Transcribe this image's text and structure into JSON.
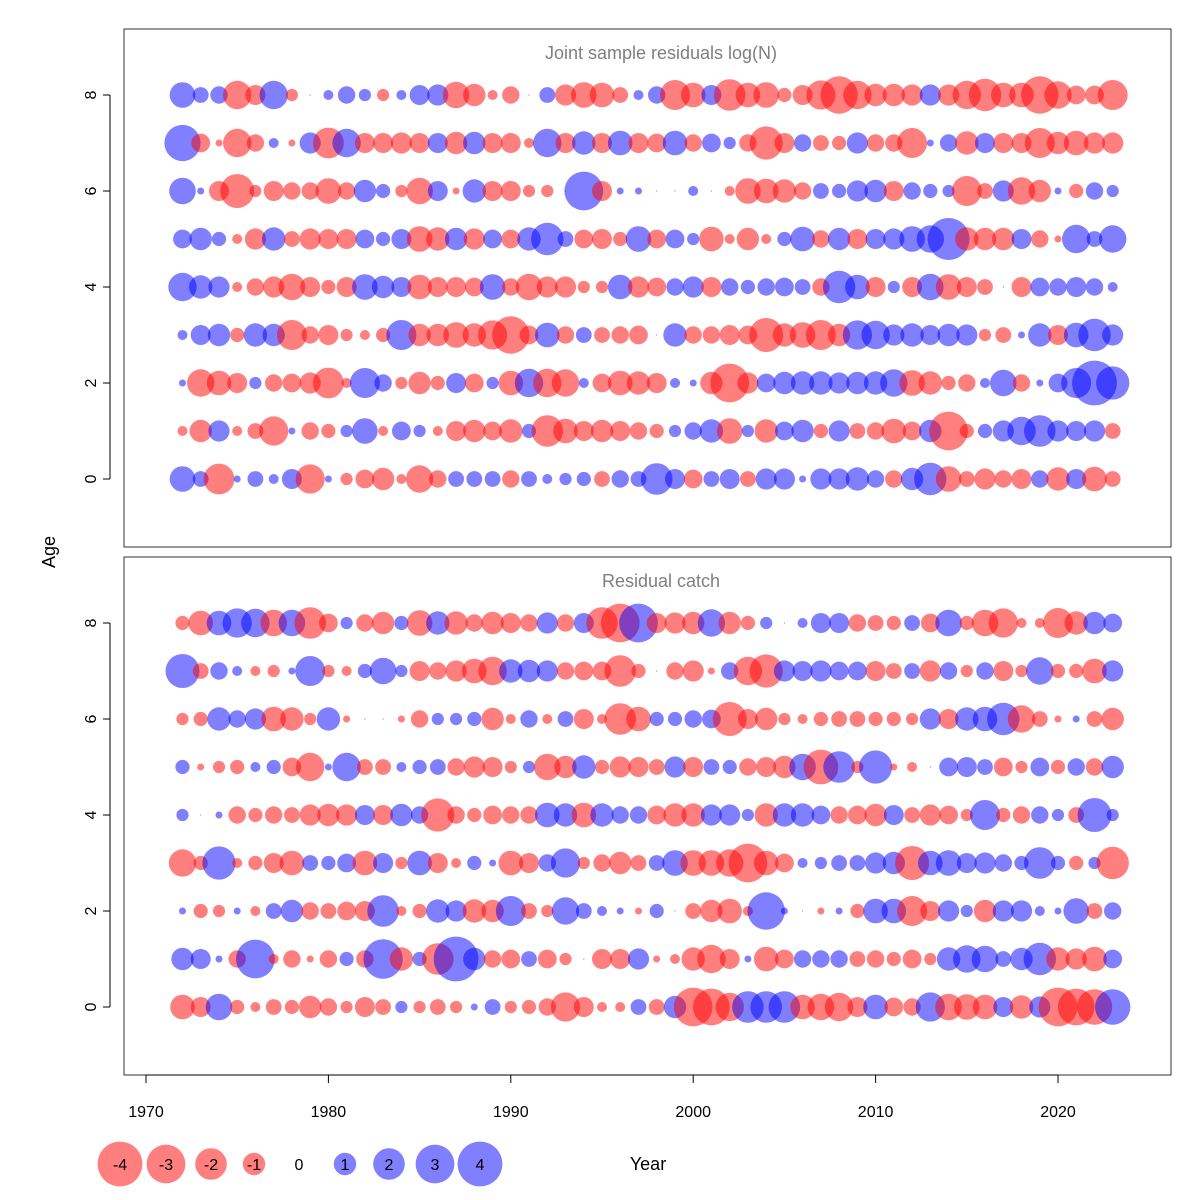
{
  "colors": {
    "negative": "#ff0000",
    "positive": "#0000ff",
    "bubble_opacity": 0.5,
    "panel_title": "#7f7f7f"
  },
  "chart_data": [
    {
      "type": "scatter",
      "title": "Joint sample residuals log(N)",
      "xlabel": "Year",
      "ylabel": "Age",
      "xlim": [
        1969,
        2026
      ],
      "ylim": [
        -1.5,
        9.5
      ],
      "y_ticks": [
        0,
        2,
        4,
        6,
        8
      ],
      "grid": false,
      "encoding": "bubble area ~ |residual|; red = negative, blue = positive",
      "years": [
        1972,
        1973,
        1974,
        1975,
        1976,
        1977,
        1978,
        1979,
        1980,
        1981,
        1982,
        1983,
        1984,
        1985,
        1986,
        1987,
        1988,
        1989,
        1990,
        1991,
        1992,
        1993,
        1994,
        1995,
        1996,
        1997,
        1998,
        1999,
        2000,
        2001,
        2002,
        2003,
        2004,
        2005,
        2006,
        2007,
        2008,
        2009,
        2010,
        2011,
        2012,
        2013,
        2014,
        2015,
        2016,
        2017,
        2018,
        2019,
        2020,
        2021,
        2022,
        2023
      ],
      "residuals_by_age": {
        "8": [
          1.3,
          0.5,
          0.6,
          -1.6,
          -0.8,
          1.6,
          -0.3,
          0,
          0.2,
          0.6,
          0.3,
          -0.3,
          0.2,
          0.8,
          0.9,
          -1.4,
          -1.0,
          -0.2,
          -0.6,
          0,
          0.5,
          -0.9,
          -1.3,
          -1.2,
          -0.5,
          0.2,
          0.6,
          -1.8,
          -1.2,
          0.8,
          -2.0,
          -1.2,
          -1.3,
          -0.4,
          -0.8,
          -1.7,
          -2.8,
          -1.6,
          -1.0,
          -1.0,
          -0.9,
          0.9,
          -0.9,
          -1.6,
          -2.1,
          -1.2,
          -1.2,
          -2.8,
          -1.5,
          -0.7,
          -0.7,
          -1.8
        ],
        "7": [
          2.6,
          -0.7,
          -0.1,
          -1.6,
          -0.6,
          0.2,
          -0.1,
          0.9,
          -1.9,
          1.6,
          -0.8,
          -0.8,
          -0.9,
          -0.8,
          0.8,
          -1.0,
          1.0,
          -0.8,
          -0.8,
          -0.2,
          1.6,
          -0.8,
          1.1,
          -0.8,
          1.2,
          -0.8,
          -0.7,
          1.2,
          -0.6,
          0.7,
          0.3,
          -0.6,
          -2.2,
          -0.8,
          0.6,
          -0.5,
          -0.4,
          0.9,
          -0.6,
          -0.6,
          -1.8,
          0.1,
          0.6,
          -1.1,
          0.8,
          -0.8,
          -0.8,
          -1.8,
          -1.0,
          -1.2,
          -0.9,
          -0.9
        ],
        "6": [
          1.4,
          0.1,
          -0.8,
          -2.3,
          -0.3,
          -0.8,
          -0.6,
          -0.6,
          -1.3,
          -0.6,
          1.0,
          0.4,
          -0.3,
          -1.4,
          0.8,
          -0.1,
          1.1,
          -0.8,
          -0.8,
          -0.3,
          -0.3,
          0,
          3.0,
          -0.8,
          0.1,
          0.1,
          0,
          0,
          0.2,
          0,
          -0.2,
          -1.3,
          -1.2,
          -1.1,
          -0.6,
          0.5,
          0.4,
          0.9,
          1.0,
          -0.8,
          0.6,
          0.4,
          0.3,
          -1.8,
          -0.5,
          0.9,
          -1.5,
          -1.0,
          0.1,
          -0.4,
          0.6,
          0.3
        ],
        "5": [
          0.7,
          1.0,
          0.4,
          -0.2,
          -0.9,
          1.1,
          -0.5,
          -0.9,
          -0.8,
          -0.8,
          0.7,
          0.4,
          0.8,
          -1.3,
          -1.1,
          1.0,
          -0.9,
          0.7,
          -0.7,
          1.1,
          2.1,
          0.5,
          -0.7,
          -0.8,
          -0.4,
          1.3,
          -0.7,
          0.7,
          0.3,
          -1.2,
          -0.2,
          -1.0,
          -0.2,
          0.4,
          1.2,
          -0.6,
          1.0,
          -0.8,
          0.8,
          0.9,
          1.3,
          1.5,
          3.5,
          -1.1,
          -1.0,
          -1.0,
          0.8,
          -0.6,
          -0.1,
          1.6,
          0.5,
          1.5
        ],
        "4": [
          1.6,
          1.1,
          0.9,
          -0.2,
          -0.6,
          -0.9,
          -1.4,
          -0.8,
          -0.4,
          -0.8,
          1.3,
          1.0,
          0.8,
          -1.2,
          -0.8,
          -0.8,
          -0.7,
          1.3,
          -0.6,
          -1.4,
          -0.9,
          -0.9,
          -0.3,
          -0.3,
          1.2,
          -0.9,
          -0.7,
          0.6,
          0.9,
          -0.8,
          0.6,
          0.4,
          0.6,
          0.7,
          0.5,
          -0.6,
          2.1,
          1.2,
          -0.8,
          0.3,
          -0.8,
          1.4,
          -1.3,
          -0.8,
          -0.5,
          0,
          -0.8,
          0.7,
          0.6,
          0.8,
          0.6,
          0.2
        ],
        "3": [
          0.2,
          0.8,
          1.0,
          -0.4,
          1.1,
          1.0,
          -1.8,
          -0.6,
          -0.8,
          -0.3,
          -0.2,
          -0.4,
          1.8,
          -1.0,
          -1.0,
          -1.3,
          -1.1,
          -1.7,
          -2.8,
          -0.7,
          1.2,
          -0.6,
          0.5,
          -0.5,
          -0.6,
          -0.7,
          0,
          1.1,
          -0.6,
          -0.6,
          -0.8,
          -0.7,
          -2.3,
          -1.1,
          -1.3,
          -1.8,
          -1.0,
          1.7,
          1.6,
          0.9,
          1.1,
          0.8,
          1.0,
          0.9,
          -0.3,
          -0.5,
          0.1,
          1.1,
          -0.8,
          1.2,
          2.1,
          0.9
        ],
        "2": [
          0.1,
          -1.5,
          -1.2,
          -0.8,
          0.3,
          -0.6,
          -0.7,
          -0.9,
          -1.9,
          -0.2,
          1.8,
          0.6,
          -0.3,
          -1.0,
          -0.4,
          0.8,
          -0.7,
          0.3,
          -1.2,
          1.6,
          -1.6,
          -1.5,
          0.2,
          -0.7,
          -1.2,
          -1.1,
          -0.8,
          0.2,
          0.1,
          -1.0,
          -3.0,
          -0.9,
          0.7,
          1.0,
          1.1,
          1.1,
          0.9,
          1.0,
          1.1,
          1.5,
          -1.3,
          -1.1,
          -0.4,
          -0.6,
          0.2,
          1.4,
          -0.6,
          0.1,
          0.7,
          1.8,
          4.0,
          2.2
        ],
        "1": [
          -0.2,
          -1.0,
          0.9,
          -0.2,
          -0.5,
          -1.7,
          0.1,
          -0.6,
          -0.4,
          0.3,
          1.3,
          -0.2,
          0.7,
          0.3,
          -0.2,
          -0.8,
          -1.0,
          -0.7,
          -1.1,
          0.4,
          -2.0,
          -1.2,
          -0.8,
          -1.0,
          -0.8,
          -0.6,
          -0.4,
          0.3,
          0.6,
          1.1,
          -1.3,
          0.3,
          -1.1,
          0.7,
          1.0,
          -0.4,
          0.9,
          -0.5,
          -0.6,
          -1.2,
          -0.7,
          1.0,
          -3.0,
          -0.4,
          0.4,
          0.9,
          1.6,
          2.0,
          0.9,
          0.8,
          0.9,
          -0.5
        ],
        "0": [
          1.3,
          0.5,
          -1.9,
          0.1,
          0.5,
          0.2,
          0.8,
          -1.7,
          0.1,
          -0.3,
          -0.7,
          -1.0,
          -0.2,
          -1.5,
          -0.6,
          0.5,
          0.5,
          0.5,
          -0.6,
          0.5,
          0.2,
          0.3,
          0.4,
          -0.5,
          0.6,
          0.5,
          2.0,
          0.8,
          -0.7,
          0.5,
          0.8,
          -0.5,
          0.9,
          0.9,
          0.1,
          0.9,
          0.9,
          1.1,
          0.6,
          -0.6,
          1.0,
          2.1,
          -1.3,
          -0.5,
          -0.9,
          -0.6,
          -0.8,
          0.6,
          -1.1,
          0.8,
          -1.2,
          -0.5
        ]
      }
    },
    {
      "type": "scatter",
      "title": "Residual catch",
      "xlabel": "Year",
      "ylabel": "Age",
      "xlim": [
        1969,
        2026
      ],
      "ylim": [
        -1.5,
        9.5
      ],
      "y_ticks": [
        0,
        2,
        4,
        6,
        8
      ],
      "grid": false,
      "encoding": "bubble area ~ |residual|; red = negative, blue = positive",
      "years": [
        1972,
        1973,
        1974,
        1975,
        1976,
        1977,
        1978,
        1979,
        1980,
        1981,
        1982,
        1983,
        1984,
        1985,
        1986,
        1987,
        1988,
        1989,
        1990,
        1991,
        1992,
        1993,
        1994,
        1995,
        1996,
        1997,
        1998,
        1999,
        2000,
        2001,
        2002,
        2003,
        2004,
        2005,
        2006,
        2007,
        2008,
        2009,
        2010,
        2011,
        2012,
        2013,
        2014,
        2015,
        2016,
        2017,
        2018,
        2019,
        2020,
        2021,
        2022,
        2023
      ],
      "residuals_by_age": {
        "8": [
          -0.4,
          -1.2,
          1.2,
          1.7,
          1.6,
          -1.4,
          1.4,
          -2.0,
          -0.7,
          0.3,
          -0.6,
          -1.0,
          0.4,
          -1.3,
          1.1,
          -1.1,
          -0.6,
          -1.0,
          -0.8,
          -0.6,
          0.9,
          -0.6,
          0.8,
          -2.0,
          -3.0,
          3.0,
          -0.8,
          -0.9,
          -1.0,
          1.5,
          -1.0,
          -0.4,
          0.3,
          0,
          0.2,
          0.8,
          0.8,
          -0.6,
          -0.5,
          -0.4,
          0.5,
          -0.7,
          1.4,
          -0.4,
          -1.4,
          -1.7,
          -0.2,
          -0.2,
          -1.8,
          -1.1,
          1.0,
          0.7
        ],
        "7": [
          2.3,
          -0.5,
          0.6,
          0.2,
          -0.2,
          -0.3,
          0.1,
          1.8,
          -0.3,
          -0.2,
          0.4,
          1.4,
          0.3,
          -0.8,
          -0.6,
          -0.9,
          -1.2,
          -1.6,
          1.1,
          1.0,
          0.9,
          -0.6,
          -0.7,
          -0.7,
          -2.0,
          -0.4,
          0,
          -0.6,
          -0.9,
          -0.1,
          0.6,
          -1.6,
          -2.2,
          0.9,
          0.8,
          0.9,
          0.7,
          0.7,
          -0.8,
          -0.5,
          0.5,
          -0.9,
          0.6,
          -0.3,
          0.6,
          -0.8,
          -0.3,
          1.5,
          -0.4,
          -0.4,
          -1.2,
          0.9
        ],
        "6": [
          -0.3,
          -0.4,
          1.1,
          0.6,
          0.9,
          -1.2,
          -1.1,
          -0.3,
          1.1,
          -0.1,
          0,
          0,
          -0.1,
          -0.6,
          0.3,
          0.3,
          0.4,
          -1.0,
          -0.2,
          0.6,
          -0.2,
          0.5,
          -0.8,
          -0.2,
          -2.0,
          -1.2,
          0.4,
          0.4,
          0.6,
          0.7,
          -2.3,
          -0.8,
          -1.0,
          -0.3,
          -0.2,
          -0.4,
          -0.5,
          -0.5,
          -0.4,
          -0.4,
          -0.3,
          0.9,
          -0.8,
          1.1,
          1.2,
          2.1,
          -1.5,
          -0.5,
          -0.1,
          0.1,
          -0.5,
          -1.0
        ],
        "5": [
          0.4,
          -0.1,
          -0.3,
          -0.4,
          0.2,
          0.4,
          -0.7,
          -1.6,
          0.1,
          1.6,
          -0.5,
          -0.5,
          0.2,
          0.4,
          0.5,
          -0.6,
          -0.9,
          -0.8,
          -0.3,
          0.3,
          -1.4,
          -1.0,
          1.1,
          -0.4,
          -0.9,
          -0.8,
          -0.5,
          0.9,
          -0.8,
          0.5,
          0.4,
          -0.6,
          -0.8,
          -1.0,
          1.4,
          -2.4,
          2.0,
          -0.3,
          2.2,
          -0.1,
          -0.2,
          0,
          0.7,
          0.8,
          0.5,
          -0.7,
          -0.3,
          0.7,
          -0.4,
          0.6,
          -0.6,
          1.0
        ],
        "4": [
          0.3,
          0,
          0.1,
          -0.6,
          -0.4,
          -0.6,
          -0.5,
          -0.9,
          -1.0,
          -0.9,
          0.8,
          -0.8,
          1.0,
          0.6,
          -2.2,
          -0.6,
          -0.4,
          -0.7,
          -0.6,
          -0.6,
          1.2,
          1.1,
          -1.2,
          1.1,
          0.6,
          0.6,
          -0.7,
          -1.1,
          -1.1,
          0.9,
          0.9,
          0.3,
          -1.1,
          1.1,
          1.1,
          0.7,
          -0.6,
          -0.7,
          -1.0,
          0.8,
          -0.5,
          -0.9,
          -0.7,
          -0.3,
          1.8,
          -0.4,
          -0.6,
          0.6,
          0.3,
          -0.5,
          2.3,
          0.3
        ],
        "3": [
          -1.5,
          -0.4,
          2.2,
          -0.2,
          -0.4,
          -0.8,
          -1.2,
          0.5,
          0.4,
          0.7,
          -1.2,
          0.8,
          -0.3,
          1.2,
          -0.8,
          -0.2,
          0.4,
          0.1,
          -1.2,
          -0.8,
          0.6,
          1.7,
          -0.3,
          -0.6,
          -1.0,
          -0.5,
          0.5,
          1.3,
          -1.3,
          -1.3,
          -1.5,
          -3.0,
          -1.2,
          -0.7,
          0.2,
          0.3,
          0.5,
          0.5,
          0.9,
          1.0,
          -2.3,
          1.2,
          1.3,
          0.8,
          0.9,
          0.6,
          0.4,
          2.0,
          0.4,
          -0.4,
          0.3,
          -2.1
        ],
        "2": [
          0.1,
          -0.4,
          -0.3,
          0.1,
          -0.2,
          0.5,
          1.0,
          -0.6,
          -0.5,
          -0.7,
          -0.8,
          2.0,
          -0.2,
          -0.4,
          1.1,
          0.9,
          -1.1,
          -1.0,
          1.8,
          -0.5,
          -0.3,
          1.5,
          0.5,
          0.2,
          0.1,
          -0.1,
          0.4,
          0,
          -0.5,
          -1.0,
          -1.2,
          -0.2,
          2.8,
          0.1,
          0,
          -0.1,
          0.1,
          -0.4,
          1.2,
          1.2,
          -1.8,
          -0.8,
          0.9,
          0.3,
          -1.0,
          0.9,
          0.9,
          0.2,
          0.1,
          1.3,
          -0.5,
          0.6
        ],
        "1": [
          1.0,
          0.8,
          0.1,
          -0.6,
          3.0,
          -0.2,
          -0.6,
          -0.1,
          -0.6,
          0.4,
          -0.6,
          3.1,
          -1.1,
          0.4,
          -2.0,
          4.0,
          1.0,
          -0.6,
          -0.7,
          0.5,
          -0.7,
          -0.3,
          0,
          -0.8,
          -0.8,
          0.9,
          -0.1,
          -0.2,
          -1.1,
          -1.6,
          -0.8,
          0.1,
          -1.2,
          -0.7,
          0.6,
          0.6,
          0.6,
          -0.5,
          -0.6,
          -0.4,
          -0.7,
          -0.3,
          1.1,
          1.5,
          1.4,
          0.5,
          1.0,
          2.1,
          -1.1,
          -0.9,
          -1.2,
          0.7
        ],
        "0": [
          -1.2,
          -0.8,
          1.4,
          -0.4,
          -0.2,
          -0.5,
          -0.4,
          -1.0,
          -0.6,
          -0.3,
          -0.8,
          -0.5,
          0.3,
          -0.3,
          -0.5,
          -0.3,
          0.1,
          0.5,
          -0.3,
          -0.4,
          -0.6,
          -1.7,
          -0.8,
          -0.2,
          -0.2,
          0.5,
          -0.5,
          1.0,
          -3.0,
          -2.7,
          -1.6,
          2.0,
          2.0,
          2.0,
          -1.2,
          -1.4,
          -1.6,
          -0.8,
          1.2,
          -0.7,
          -0.6,
          1.7,
          -1.4,
          -1.3,
          -1.2,
          0.8,
          -1.1,
          0.9,
          -3.0,
          -2.7,
          -2.5,
          2.5
        ]
      }
    }
  ],
  "axes": {
    "x_ticks": [
      1970,
      1980,
      1990,
      2000,
      2010,
      2020
    ],
    "y_tick_labels": [
      "0",
      "2",
      "4",
      "6",
      "8"
    ],
    "xlabel": "Year",
    "ylabel": "Age"
  },
  "legend": {
    "values": [
      -4,
      -3,
      -2,
      -1,
      0,
      1,
      2,
      3,
      4
    ],
    "labels": [
      "-4",
      "-3",
      "-2",
      "-1",
      "0",
      "1",
      "2",
      "3",
      "4"
    ],
    "position": "bottom-left"
  }
}
